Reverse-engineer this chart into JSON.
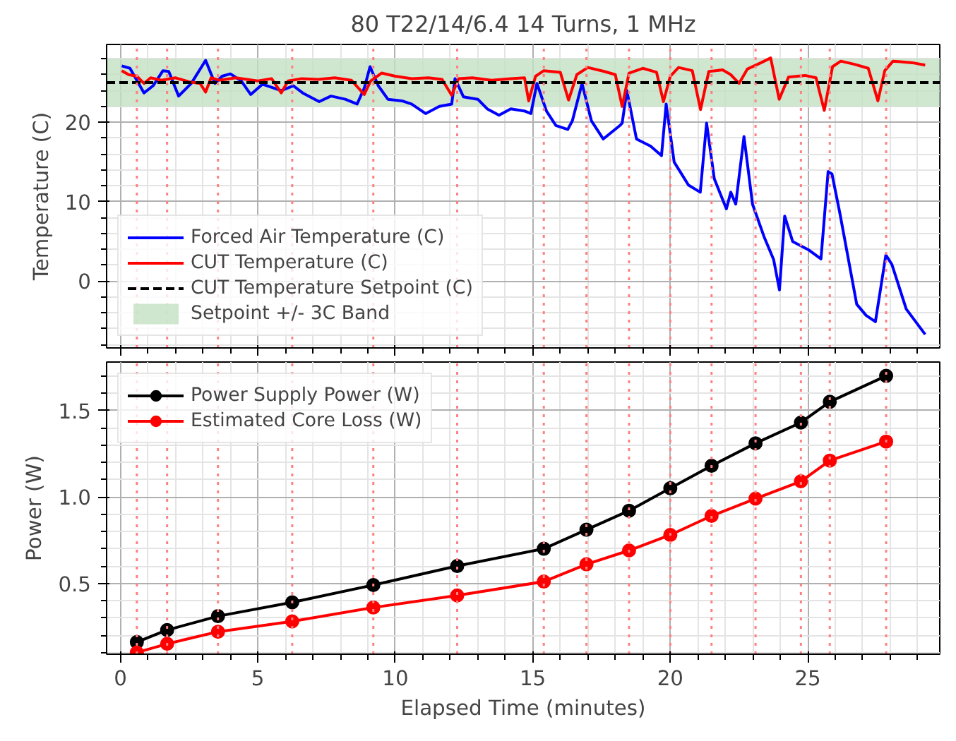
{
  "chart_data": [
    {
      "type": "line",
      "title": "80 T22/14/6.4 14 Turns, 1 MHz",
      "ylabel": "Temperature (C)",
      "xlim": [
        -0.5,
        29.8
      ],
      "ylim": [
        -8.4,
        29.8
      ],
      "xticks": [
        0,
        5,
        10,
        15,
        20,
        25
      ],
      "yticks": [
        0,
        10,
        20
      ],
      "tick_labels": "y",
      "grid": true,
      "legend": "bottom left",
      "series": [
        {
          "name": "Forced Air Temperature (C)",
          "color": "#0000ff",
          "x": [
            0.05,
            0.35,
            0.86,
            1.19,
            1.55,
            1.76,
            2.12,
            2.58,
            3.1,
            3.44,
            3.7,
            4.0,
            4.4,
            4.74,
            5.17,
            5.85,
            6.29,
            6.63,
            7.23,
            7.66,
            8.18,
            8.61,
            8.87,
            9.08,
            9.38,
            9.73,
            10.24,
            10.59,
            11.1,
            11.6,
            12.05,
            12.17,
            12.48,
            13.0,
            13.34,
            13.77,
            14.2,
            14.72,
            14.93,
            15.15,
            15.5,
            15.84,
            16.27,
            16.44,
            16.79,
            17.13,
            17.56,
            18.17,
            18.25,
            18.42,
            18.77,
            19.28,
            19.68,
            19.85,
            20.14,
            20.66,
            21.09,
            21.32,
            21.6,
            22.04,
            22.2,
            22.38,
            22.68,
            22.99,
            23.41,
            23.76,
            23.97,
            24.16,
            24.45,
            25.05,
            25.48,
            25.74,
            25.88,
            26.17,
            26.78,
            27.12,
            27.46,
            27.84,
            28.06,
            28.58,
            29.27
          ],
          "values": [
            27.1,
            26.8,
            23.7,
            24.6,
            26.5,
            26.4,
            23.3,
            24.9,
            27.8,
            24.9,
            25.8,
            26.1,
            25.2,
            23.5,
            24.8,
            24.0,
            24.6,
            23.7,
            22.6,
            23.3,
            22.9,
            22.3,
            24.3,
            27.0,
            24.6,
            22.9,
            22.7,
            22.3,
            21.1,
            22.0,
            22.3,
            25.5,
            23.2,
            22.9,
            21.7,
            20.9,
            21.7,
            21.4,
            21.1,
            24.9,
            21.4,
            19.6,
            19.1,
            20.2,
            24.9,
            20.2,
            17.9,
            19.6,
            19.9,
            24.0,
            17.9,
            17.0,
            15.8,
            22.3,
            15.0,
            12.1,
            11.2,
            19.9,
            12.9,
            9.1,
            11.2,
            9.7,
            18.2,
            9.7,
            5.6,
            2.7,
            -1.1,
            8.2,
            5.0,
            3.9,
            2.8,
            13.8,
            13.5,
            8.5,
            -2.9,
            -4.3,
            -5.1,
            3.3,
            2.1,
            -3.5,
            -6.7
          ]
        },
        {
          "name": "CUT Temperature (C)",
          "color": "#ff0000",
          "x": [
            0.05,
            0.3,
            0.6,
            0.86,
            1.1,
            1.5,
            2.0,
            2.5,
            2.9,
            3.1,
            3.3,
            3.6,
            4.2,
            4.6,
            5.0,
            5.5,
            5.85,
            6.1,
            6.6,
            7.2,
            7.8,
            8.4,
            8.87,
            9.1,
            9.5,
            10.0,
            10.6,
            11.2,
            11.7,
            12.05,
            12.3,
            12.8,
            13.5,
            14.2,
            14.7,
            14.85,
            15.1,
            15.4,
            16.0,
            16.3,
            16.6,
            17.0,
            17.6,
            18.0,
            18.25,
            18.5,
            19.0,
            19.5,
            19.75,
            20.0,
            20.3,
            20.8,
            21.1,
            21.4,
            21.9,
            22.2,
            22.5,
            22.8,
            23.3,
            23.65,
            23.96,
            24.3,
            24.9,
            25.3,
            25.6,
            25.9,
            26.2,
            26.7,
            27.2,
            27.55,
            27.8,
            28.1,
            28.8,
            29.27
          ],
          "values": [
            26.5,
            26.0,
            25.8,
            24.9,
            25.6,
            25.3,
            25.6,
            25.1,
            24.9,
            23.8,
            25.6,
            25.3,
            25.6,
            25.4,
            25.2,
            25.5,
            23.7,
            25.2,
            25.5,
            25.4,
            25.6,
            25.3,
            23.5,
            25.2,
            26.2,
            25.8,
            25.5,
            25.6,
            25.4,
            23.4,
            25.5,
            25.6,
            25.3,
            25.5,
            25.6,
            22.7,
            25.8,
            26.5,
            26.3,
            22.8,
            26.0,
            26.9,
            26.4,
            26.0,
            22.0,
            26.2,
            26.8,
            26.3,
            22.6,
            25.8,
            26.9,
            26.5,
            21.6,
            26.4,
            26.6,
            26.0,
            24.9,
            26.7,
            27.5,
            28.1,
            22.9,
            25.7,
            25.9,
            25.6,
            21.5,
            27.0,
            27.7,
            27.3,
            26.8,
            22.7,
            26.5,
            27.7,
            27.5,
            27.2
          ]
        }
      ],
      "ref_lines": [
        {
          "axis": "y",
          "value": 25,
          "label": "CUT Temperature Setpoint (C)",
          "color": "#000000",
          "line_style": "dashed"
        },
        {
          "axis": "x",
          "value": 0.6,
          "color": "#ff8080",
          "line_style": "dotted"
        },
        {
          "axis": "x",
          "value": 1.7,
          "color": "#ff8080",
          "line_style": "dotted"
        },
        {
          "axis": "x",
          "value": 3.55,
          "color": "#ff8080",
          "line_style": "dotted"
        },
        {
          "axis": "x",
          "value": 6.25,
          "color": "#ff8080",
          "line_style": "dotted"
        },
        {
          "axis": "x",
          "value": 9.2,
          "color": "#ff8080",
          "line_style": "dotted"
        },
        {
          "axis": "x",
          "value": 12.25,
          "color": "#ff8080",
          "line_style": "dotted"
        },
        {
          "axis": "x",
          "value": 15.4,
          "color": "#ff8080",
          "line_style": "dotted"
        },
        {
          "axis": "x",
          "value": 16.95,
          "color": "#ff8080",
          "line_style": "dotted"
        },
        {
          "axis": "x",
          "value": 18.5,
          "color": "#ff8080",
          "line_style": "dotted"
        },
        {
          "axis": "x",
          "value": 20.0,
          "color": "#ff8080",
          "line_style": "dotted"
        },
        {
          "axis": "x",
          "value": 21.5,
          "color": "#ff8080",
          "line_style": "dotted"
        },
        {
          "axis": "x",
          "value": 23.1,
          "color": "#ff8080",
          "line_style": "dotted"
        },
        {
          "axis": "x",
          "value": 24.75,
          "color": "#ff8080",
          "line_style": "dotted"
        },
        {
          "axis": "x",
          "value": 25.8,
          "color": "#ff8080",
          "line_style": "dotted"
        },
        {
          "axis": "x",
          "value": 27.85,
          "color": "#ff8080",
          "line_style": "dotted"
        }
      ],
      "bands": [
        {
          "axis": "y",
          "from": 22,
          "to": 28,
          "label": "Setpoint +/- 3C Band",
          "color": "#c3e0c3"
        }
      ]
    },
    {
      "type": "line",
      "xlabel": "Elapsed Time (minutes)",
      "ylabel": "Power (W)",
      "xlim": [
        -0.5,
        29.8
      ],
      "ylim": [
        0.09,
        1.78
      ],
      "xticks": [
        0,
        5,
        10,
        15,
        20,
        25
      ],
      "yticks": [
        {
          "value": 0.5,
          "label": "0.5"
        },
        {
          "value": 1.0,
          "label": "1.0"
        },
        {
          "value": 1.5,
          "label": "1.5"
        }
      ],
      "grid": true,
      "legend": "top left",
      "marker": "circle",
      "x": [
        0.6,
        1.7,
        3.55,
        6.25,
        9.2,
        12.25,
        15.4,
        16.95,
        18.5,
        20.0,
        21.5,
        23.1,
        24.75,
        25.8,
        27.85
      ],
      "series": [
        {
          "name": "Power Supply Power (W)",
          "color": "#000000",
          "values": [
            0.16,
            0.23,
            0.31,
            0.39,
            0.49,
            0.6,
            0.7,
            0.81,
            0.92,
            1.05,
            1.18,
            1.31,
            1.43,
            1.55,
            1.7
          ]
        },
        {
          "name": "Estimated Core Loss (W)",
          "color": "#ff0000",
          "values": [
            0.1,
            0.15,
            0.22,
            0.28,
            0.36,
            0.43,
            0.51,
            0.61,
            0.69,
            0.78,
            0.89,
            0.99,
            1.09,
            1.21,
            1.32
          ]
        }
      ],
      "ref_lines": [
        {
          "axis": "x",
          "value": 0.6,
          "color": "#ff8080",
          "line_style": "dotted"
        },
        {
          "axis": "x",
          "value": 1.7,
          "color": "#ff8080",
          "line_style": "dotted"
        },
        {
          "axis": "x",
          "value": 3.55,
          "color": "#ff8080",
          "line_style": "dotted"
        },
        {
          "axis": "x",
          "value": 6.25,
          "color": "#ff8080",
          "line_style": "dotted"
        },
        {
          "axis": "x",
          "value": 9.2,
          "color": "#ff8080",
          "line_style": "dotted"
        },
        {
          "axis": "x",
          "value": 12.25,
          "color": "#ff8080",
          "line_style": "dotted"
        },
        {
          "axis": "x",
          "value": 15.4,
          "color": "#ff8080",
          "line_style": "dotted"
        },
        {
          "axis": "x",
          "value": 16.95,
          "color": "#ff8080",
          "line_style": "dotted"
        },
        {
          "axis": "x",
          "value": 18.5,
          "color": "#ff8080",
          "line_style": "dotted"
        },
        {
          "axis": "x",
          "value": 20.0,
          "color": "#ff8080",
          "line_style": "dotted"
        },
        {
          "axis": "x",
          "value": 21.5,
          "color": "#ff8080",
          "line_style": "dotted"
        },
        {
          "axis": "x",
          "value": 23.1,
          "color": "#ff8080",
          "line_style": "dotted"
        },
        {
          "axis": "x",
          "value": 24.75,
          "color": "#ff8080",
          "line_style": "dotted"
        },
        {
          "axis": "x",
          "value": 25.8,
          "color": "#ff8080",
          "line_style": "dotted"
        },
        {
          "axis": "x",
          "value": 27.85,
          "color": "#ff8080",
          "line_style": "dotted"
        }
      ]
    }
  ]
}
